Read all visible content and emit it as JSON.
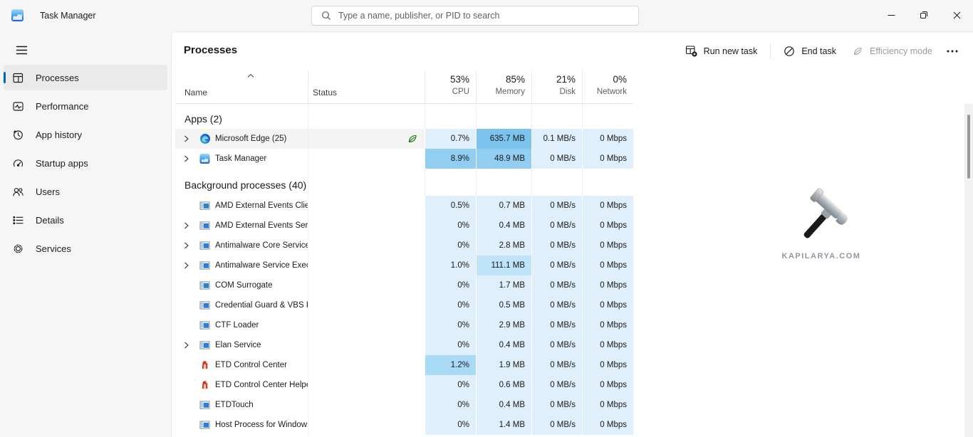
{
  "titlebar": {
    "title": "Task Manager",
    "search_placeholder": "Type a name, publisher, or PID to search",
    "window_controls": [
      "minimize-icon",
      "restore-icon",
      "close-icon"
    ]
  },
  "sidebar": {
    "items": [
      {
        "label": "Processes",
        "icon": "processes-icon",
        "selected": true
      },
      {
        "label": "Performance",
        "icon": "performance-icon",
        "selected": false
      },
      {
        "label": "App history",
        "icon": "app-history-icon",
        "selected": false
      },
      {
        "label": "Startup apps",
        "icon": "startup-apps-icon",
        "selected": false
      },
      {
        "label": "Users",
        "icon": "users-icon",
        "selected": false
      },
      {
        "label": "Details",
        "icon": "details-icon",
        "selected": false
      },
      {
        "label": "Services",
        "icon": "services-icon",
        "selected": false
      }
    ]
  },
  "page": {
    "title": "Processes"
  },
  "toolbar": {
    "buttons": [
      {
        "label": "Run new task",
        "icon": "run-new-task-icon",
        "disabled": false
      },
      {
        "label": "End task",
        "icon": "end-task-icon",
        "disabled": false
      },
      {
        "label": "Efficiency mode",
        "icon": "efficiency-leaf-icon",
        "disabled": true
      }
    ],
    "more_icon": "more-icon"
  },
  "table": {
    "header": {
      "name": "Name",
      "status": "Status",
      "cols": [
        {
          "key": "cpu",
          "pct": "53%",
          "label": "CPU"
        },
        {
          "key": "memory",
          "pct": "85%",
          "label": "Memory"
        },
        {
          "key": "disk",
          "pct": "21%",
          "label": "Disk"
        },
        {
          "key": "network",
          "pct": "0%",
          "label": "Network"
        }
      ]
    },
    "sections": [
      {
        "label": "Apps (2)",
        "rows": [
          {
            "name": "Microsoft Edge (25)",
            "icon": "edge-app-icon",
            "chevron": true,
            "status_icon": "efficiency-leaf-icon",
            "hovered": true,
            "cpu": {
              "text": "0.7%",
              "heat": 0
            },
            "memory": {
              "text": "635.7 MB",
              "heat": 4
            },
            "disk": {
              "text": "0.1 MB/s",
              "heat": 0
            },
            "network": {
              "text": "0 Mbps",
              "heat": 0
            }
          },
          {
            "name": "Task Manager",
            "icon": "taskmgr-app-icon",
            "chevron": true,
            "status_icon": null,
            "hovered": false,
            "cpu": {
              "text": "8.9%",
              "heat": 3
            },
            "memory": {
              "text": "48.9 MB",
              "heat": 3
            },
            "disk": {
              "text": "0 MB/s",
              "heat": 0
            },
            "network": {
              "text": "0 Mbps",
              "heat": 0
            }
          }
        ]
      },
      {
        "label": "Background processes (40)",
        "rows": [
          {
            "name": "AMD External Events Client M...",
            "icon": "app-window-icon",
            "chevron": false,
            "status_icon": null,
            "hovered": false,
            "cpu": {
              "text": "0.5%",
              "heat": 0
            },
            "memory": {
              "text": "0.7 MB",
              "heat": 0
            },
            "disk": {
              "text": "0 MB/s",
              "heat": 0
            },
            "network": {
              "text": "0 Mbps",
              "heat": 0
            }
          },
          {
            "name": "AMD External Events Service ...",
            "icon": "app-window-icon",
            "chevron": true,
            "status_icon": null,
            "hovered": false,
            "cpu": {
              "text": "0%",
              "heat": 0
            },
            "memory": {
              "text": "0.4 MB",
              "heat": 0
            },
            "disk": {
              "text": "0 MB/s",
              "heat": 0
            },
            "network": {
              "text": "0 Mbps",
              "heat": 0
            }
          },
          {
            "name": "Antimalware Core Service",
            "icon": "app-window-icon",
            "chevron": true,
            "status_icon": null,
            "hovered": false,
            "cpu": {
              "text": "0%",
              "heat": 0
            },
            "memory": {
              "text": "2.8 MB",
              "heat": 0
            },
            "disk": {
              "text": "0 MB/s",
              "heat": 0
            },
            "network": {
              "text": "0 Mbps",
              "heat": 0
            }
          },
          {
            "name": "Antimalware Service Executable",
            "icon": "app-window-icon",
            "chevron": true,
            "status_icon": null,
            "hovered": false,
            "cpu": {
              "text": "1.0%",
              "heat": 0
            },
            "memory": {
              "text": "111.1 MB",
              "heat": 1
            },
            "disk": {
              "text": "0 MB/s",
              "heat": 0
            },
            "network": {
              "text": "0 Mbps",
              "heat": 0
            }
          },
          {
            "name": "COM Surrogate",
            "icon": "app-window-icon",
            "chevron": false,
            "status_icon": null,
            "hovered": false,
            "cpu": {
              "text": "0%",
              "heat": 0
            },
            "memory": {
              "text": "1.7 MB",
              "heat": 0
            },
            "disk": {
              "text": "0 MB/s",
              "heat": 0
            },
            "network": {
              "text": "0 Mbps",
              "heat": 0
            }
          },
          {
            "name": "Credential Guard & VBS Key Is...",
            "icon": "app-window-icon",
            "chevron": false,
            "status_icon": null,
            "hovered": false,
            "cpu": {
              "text": "0%",
              "heat": 0
            },
            "memory": {
              "text": "0.5 MB",
              "heat": 0
            },
            "disk": {
              "text": "0 MB/s",
              "heat": 0
            },
            "network": {
              "text": "0 Mbps",
              "heat": 0
            }
          },
          {
            "name": "CTF Loader",
            "icon": "app-window-icon",
            "chevron": false,
            "status_icon": null,
            "hovered": false,
            "cpu": {
              "text": "0%",
              "heat": 0
            },
            "memory": {
              "text": "2.9 MB",
              "heat": 0
            },
            "disk": {
              "text": "0 MB/s",
              "heat": 0
            },
            "network": {
              "text": "0 Mbps",
              "heat": 0
            }
          },
          {
            "name": "Elan Service",
            "icon": "app-window-icon",
            "chevron": true,
            "status_icon": null,
            "hovered": false,
            "cpu": {
              "text": "0%",
              "heat": 0
            },
            "memory": {
              "text": "0.4 MB",
              "heat": 0
            },
            "disk": {
              "text": "0 MB/s",
              "heat": 0
            },
            "network": {
              "text": "0 Mbps",
              "heat": 0
            }
          },
          {
            "name": "ETD Control Center",
            "icon": "etd-app-icon",
            "chevron": false,
            "status_icon": null,
            "hovered": false,
            "cpu": {
              "text": "1.2%",
              "heat": 2
            },
            "memory": {
              "text": "1.9 MB",
              "heat": 0
            },
            "disk": {
              "text": "0 MB/s",
              "heat": 0
            },
            "network": {
              "text": "0 Mbps",
              "heat": 0
            }
          },
          {
            "name": "ETD Control Center Helper",
            "icon": "etd-app-icon",
            "chevron": false,
            "status_icon": null,
            "hovered": false,
            "cpu": {
              "text": "0%",
              "heat": 0
            },
            "memory": {
              "text": "0.6 MB",
              "heat": 0
            },
            "disk": {
              "text": "0 MB/s",
              "heat": 0
            },
            "network": {
              "text": "0 Mbps",
              "heat": 0
            }
          },
          {
            "name": "ETDTouch",
            "icon": "app-window-icon",
            "chevron": false,
            "status_icon": null,
            "hovered": false,
            "cpu": {
              "text": "0%",
              "heat": 0
            },
            "memory": {
              "text": "0.4 MB",
              "heat": 0
            },
            "disk": {
              "text": "0 MB/s",
              "heat": 0
            },
            "network": {
              "text": "0 Mbps",
              "heat": 0
            }
          },
          {
            "name": "Host Process for Windows Tasks",
            "icon": "app-window-icon",
            "chevron": false,
            "status_icon": null,
            "hovered": false,
            "cpu": {
              "text": "0%",
              "heat": 0
            },
            "memory": {
              "text": "1.4 MB",
              "heat": 0
            },
            "disk": {
              "text": "0 MB/s",
              "heat": 0
            },
            "network": {
              "text": "0 Mbps",
              "heat": 0
            }
          }
        ]
      }
    ]
  },
  "watermark": {
    "text": "KAPILARYA.COM",
    "icon": "hammer-icon"
  },
  "colors": {
    "accent": "#0067c0",
    "efficiency_green": "#0e700e",
    "heat_palette": [
      "#dfeffb",
      "#bfe3f8",
      "#a9dbf6",
      "#92cef2",
      "#7cc3ee"
    ]
  }
}
